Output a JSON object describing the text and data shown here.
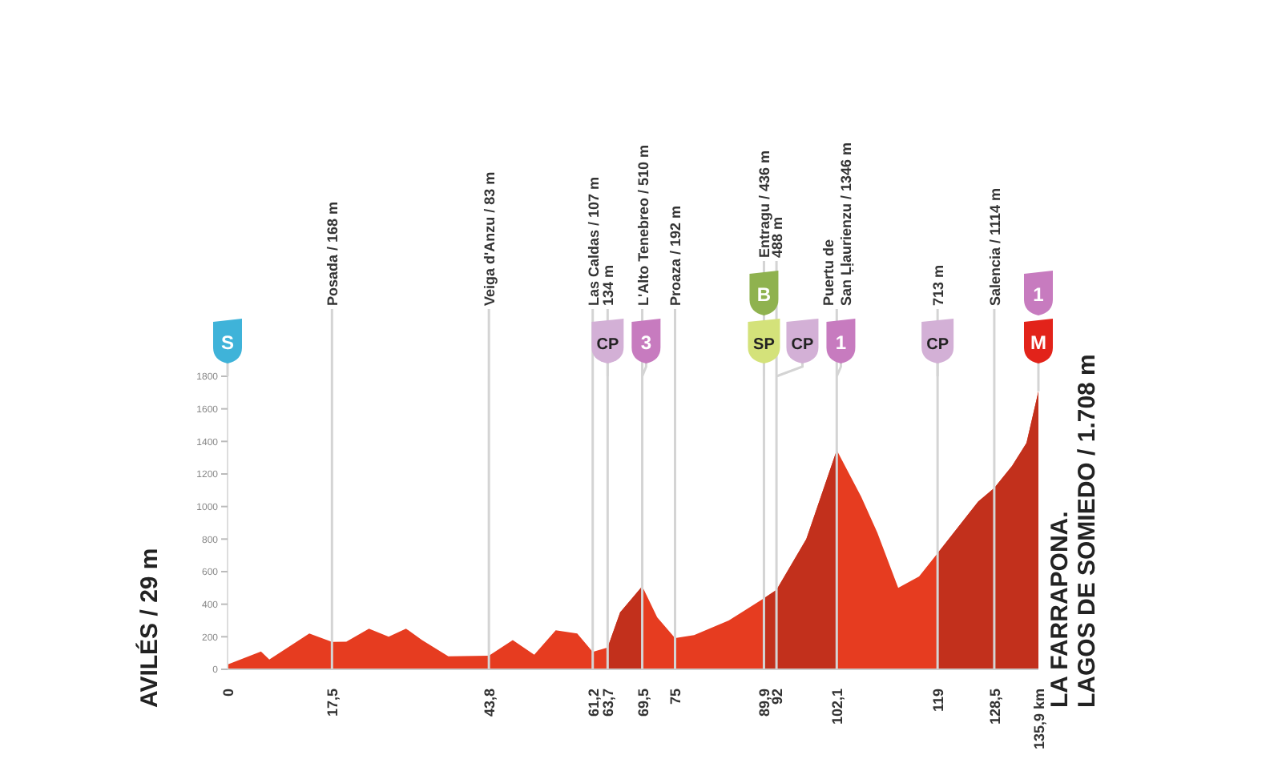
{
  "chart_data": {
    "type": "area",
    "xlim": [
      0,
      135.9
    ],
    "ylim": [
      0,
      1800
    ],
    "xticks": [
      0,
      {
        "value": 17.5,
        "label": "17,5"
      },
      {
        "value": 43.8,
        "label": "43,8"
      },
      {
        "value": 61.2,
        "label": "61,2"
      },
      {
        "value": 63.7,
        "label": "63,7"
      },
      {
        "value": 69.5,
        "label": "69,5"
      },
      75,
      {
        "value": 89.9,
        "label": "89,9"
      },
      92,
      {
        "value": 102.1,
        "label": "102,1"
      },
      119,
      {
        "value": 128.5,
        "label": "128,5"
      },
      {
        "value": 135.9,
        "label": "135,9 km"
      }
    ],
    "yticks": [
      0,
      200,
      400,
      600,
      800,
      1000,
      1200,
      1400,
      1600,
      1800
    ],
    "series": [
      {
        "color": "#e63c20",
        "x": [
          0,
          5.6,
          7,
          13.7,
          17.5,
          19.9,
          23.7,
          27,
          29.9,
          32.6,
          37,
          43.8,
          47.8,
          51.4,
          55,
          58.6,
          61.2,
          63.7,
          65.8,
          69.5,
          72,
          75,
          78.2,
          84,
          89.9,
          92,
          97,
          102.1,
          106.2,
          108.9,
          112.4,
          115.9,
          119,
          125.8,
          128.5,
          131.5,
          133.9,
          135.9
        ],
        "values": [
          29,
          110,
          60,
          220,
          168,
          170,
          250,
          200,
          250,
          180,
          80,
          83,
          180,
          90,
          240,
          220,
          107,
          134,
          350,
          510,
          320,
          192,
          210,
          300,
          436,
          488,
          800,
          1346,
          1060,
          840,
          500,
          570,
          713,
          1030,
          1114,
          1250,
          1390,
          1708
        ]
      },
      {
        "color": "#c2301c",
        "x": [
          63.7,
          65.8,
          69.5
        ],
        "values": [
          134,
          350,
          510
        ]
      },
      {
        "color": "#c2301c",
        "x": [
          89.9,
          92,
          97,
          102.1
        ],
        "values": [
          436,
          488,
          800,
          1346
        ]
      },
      {
        "color": "#c2301c",
        "x": [
          119,
          125.8,
          128.5,
          131.5,
          133.9,
          135.9
        ],
        "values": [
          713,
          1030,
          1114,
          1250,
          1390,
          1708
        ]
      }
    ],
    "ref_lines": [
      {
        "axis": "x",
        "value": 17.5,
        "label": "Posada / 168 m"
      },
      {
        "axis": "x",
        "value": 43.8,
        "label": "Veiga d'Anzu / 83 m"
      },
      {
        "axis": "x",
        "value": 61.2,
        "label": "Las Caldas / 107 m"
      },
      {
        "axis": "x",
        "value": 63.7,
        "label": "134 m"
      },
      {
        "axis": "x",
        "value": 69.5,
        "label": "L'Alto Tenebreo / 510 m"
      },
      {
        "axis": "x",
        "value": 75,
        "label": "Proaza / 192 m"
      },
      {
        "axis": "x",
        "value": 89.9,
        "label": "Entragu / 436 m"
      },
      {
        "axis": "x",
        "value": 92,
        "label": "488 m"
      },
      {
        "axis": "x",
        "value": 102.1,
        "label": "Puertu de\nSan Ḷḷaurienzu / 1346 m"
      },
      {
        "axis": "x",
        "value": 119,
        "label": "713 m"
      },
      {
        "axis": "x",
        "value": 128.5,
        "label": "Salencia / 1114 m"
      }
    ],
    "annotations": [
      "AVILÉS / 29 m",
      "LA FARRAPONA.\nLAGOS DE SOMIEDO / 1.708 m",
      "S",
      "1",
      {
        "text": "CP",
        "x": 63.7,
        "y": 1800
      },
      {
        "text": "3",
        "x": 69.5,
        "y": 1800
      },
      {
        "text": "SP",
        "x": 89.9,
        "y": 1800
      },
      {
        "text": "B",
        "x": 89.9,
        "y": 1800
      },
      {
        "text": "CP",
        "x": 92,
        "y": 1800
      },
      {
        "text": "1",
        "x": 102.1,
        "y": 1800
      },
      {
        "text": "CP",
        "x": 119,
        "y": 1800
      },
      {
        "text": "M",
        "x": 135.9,
        "y": 1708
      }
    ]
  }
}
